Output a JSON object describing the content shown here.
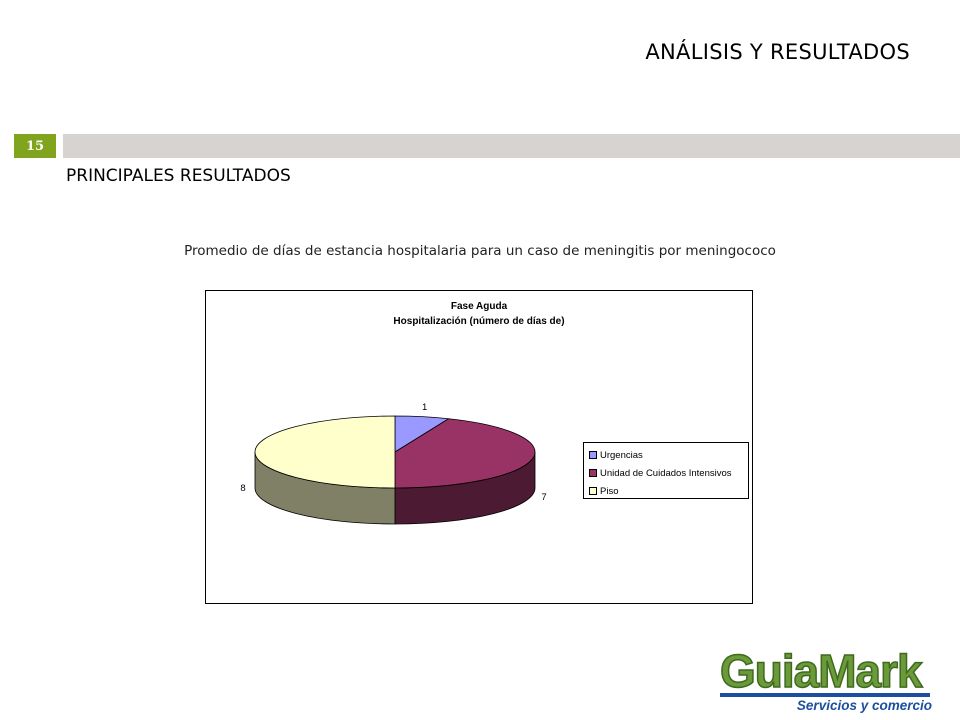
{
  "slide": {
    "title": "ANÁLISIS Y RESULTADOS",
    "number": "15",
    "section_title": "PRINCIPALES RESULTADOS",
    "chart_caption": "Promedio de días de estancia hospitalaria para un caso de meningitis por meningococo"
  },
  "logo": {
    "wordmark": "GuiaMark",
    "tagline": "Servicios y comercio"
  },
  "colors": {
    "slide_number_bg": "#80a41e",
    "header_bar": "#d7d3d0"
  },
  "chart_data": {
    "type": "pie",
    "title_lines": [
      "Fase Aguda",
      "Hospitalización (número de días de)"
    ],
    "categories": [
      "Urgencias",
      "Unidad de Cuidados Intensivos",
      "Piso"
    ],
    "values": [
      1,
      7,
      8
    ],
    "colors": [
      "#9999ff",
      "#993366",
      "#ffffcc"
    ],
    "side_colors": [
      "#5c5c99",
      "#4d1a33",
      "#808066"
    ],
    "legend_position": "right",
    "data_labels": true,
    "three_d": true
  }
}
